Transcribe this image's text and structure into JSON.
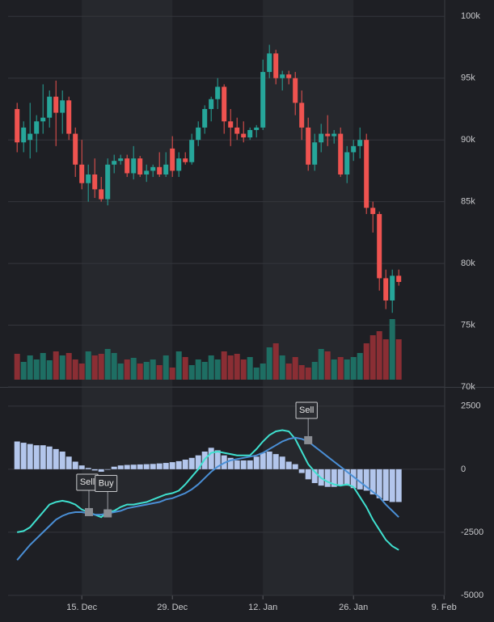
{
  "chart_data": [
    {
      "type": "candlestick",
      "x": [
        5,
        6,
        7,
        8,
        9,
        10,
        11,
        12,
        13,
        14,
        15,
        16,
        17,
        18,
        19,
        20,
        21,
        22,
        23,
        24,
        25,
        26,
        27,
        28,
        29,
        30,
        31,
        32,
        33,
        34,
        35,
        36,
        37,
        38,
        39,
        40,
        41,
        42,
        43,
        44,
        45,
        46,
        47,
        48,
        49,
        50,
        51,
        52,
        53,
        54,
        55,
        56,
        57,
        58,
        59,
        60,
        61,
        62,
        63,
        64
      ],
      "open": [
        92.5,
        89.8,
        90,
        90.5,
        91.5,
        91.8,
        93.5,
        92.2,
        93.2,
        90.5,
        88,
        86.5,
        87.2,
        86,
        85.2,
        88,
        88.3,
        88.5,
        87.3,
        88.5,
        87.2,
        87.5,
        87.8,
        87.2,
        89.3,
        87.5,
        88.5,
        88.2,
        90,
        91,
        92.5,
        93.3,
        94.3,
        91.5,
        91,
        90.5,
        90.2,
        90.8,
        91,
        95.5,
        97,
        95,
        95.3,
        95,
        93,
        91,
        88,
        89.8,
        90.5,
        90.3,
        90.5,
        87.2,
        89,
        89.5,
        90,
        84.5,
        84,
        78.8,
        77,
        79
      ],
      "high": [
        93,
        91.5,
        93,
        92,
        94.5,
        94,
        94.8,
        94,
        93.5,
        91,
        90,
        88,
        88.5,
        87,
        88.5,
        88.8,
        88.8,
        88.8,
        89.5,
        88.7,
        88,
        88,
        89,
        89,
        90.3,
        89,
        89,
        90.5,
        91.5,
        92.8,
        93.5,
        95,
        94.5,
        92.5,
        91.8,
        91.5,
        91,
        91.2,
        96.5,
        97.7,
        97.3,
        95.6,
        95.6,
        95.5,
        94,
        91.8,
        90.5,
        91.3,
        92,
        90.8,
        91,
        89.5,
        90,
        91,
        90.5,
        85,
        84.2,
        79.5,
        79.5,
        79.5
      ],
      "low": [
        89,
        89,
        88.5,
        89,
        90.5,
        91,
        89.5,
        90.5,
        90,
        87,
        86,
        85,
        85.3,
        85,
        84.7,
        87.3,
        88,
        87,
        86.8,
        87,
        86.6,
        87,
        87,
        87,
        87,
        87,
        88,
        88,
        89.5,
        90.5,
        91.5,
        92.5,
        90.5,
        89.5,
        90,
        89.8,
        90,
        90.2,
        90.8,
        95,
        94.5,
        94,
        94.5,
        92,
        90,
        87.5,
        87.5,
        89,
        89.5,
        89.7,
        87,
        86.5,
        88.3,
        88.5,
        84,
        82.5,
        77.8,
        76.3,
        76,
        78.2
      ],
      "close": [
        89.8,
        91,
        90.5,
        91.5,
        91.8,
        93.5,
        92.2,
        93.2,
        90.5,
        88,
        86.5,
        87.2,
        86,
        85.2,
        88,
        88.3,
        88.5,
        87.3,
        88.5,
        87.2,
        87.5,
        87.8,
        87.2,
        88,
        87.5,
        88.5,
        88.2,
        90,
        91,
        92.5,
        93.3,
        94.3,
        91.5,
        91,
        90.5,
        90.2,
        90.8,
        91,
        95.5,
        97,
        95,
        95.3,
        95,
        93,
        91,
        88,
        89.8,
        90.5,
        90.3,
        90.5,
        87.2,
        89,
        89.5,
        90,
        84.5,
        84,
        78.8,
        77,
        79,
        78.5
      ],
      "volume": [
        32,
        22,
        30,
        25,
        33,
        24,
        35,
        30,
        33,
        25,
        20,
        35,
        30,
        32,
        38,
        33,
        20,
        25,
        27,
        20,
        22,
        25,
        18,
        30,
        15,
        35,
        28,
        18,
        25,
        22,
        30,
        25,
        35,
        30,
        32,
        25,
        28,
        15,
        20,
        40,
        45,
        30,
        20,
        28,
        18,
        15,
        22,
        38,
        35,
        25,
        28,
        25,
        28,
        33,
        45,
        55,
        60,
        50,
        75,
        50
      ],
      "up_color": "#26a69a",
      "down_color": "#ef5350",
      "up_volume_color": "#1e6e63",
      "down_volume_color": "#8a2e34",
      "xlim": [
        3.6,
        71.1
      ],
      "ylim": [
        70,
        101
      ],
      "yticks": [
        {
          "value": 100,
          "label": "100k"
        },
        {
          "value": 95,
          "label": "95k"
        },
        {
          "value": 90,
          "label": "90k"
        },
        {
          "value": 85,
          "label": "85k"
        },
        {
          "value": 80,
          "label": "80k"
        },
        {
          "value": 75,
          "label": "75k"
        },
        {
          "value": 70,
          "label": "70k"
        }
      ],
      "grid": true
    },
    {
      "type": "macd",
      "x": [
        5,
        6,
        7,
        8,
        9,
        10,
        11,
        12,
        13,
        14,
        15,
        16,
        17,
        18,
        19,
        20,
        21,
        22,
        23,
        24,
        25,
        26,
        27,
        28,
        29,
        30,
        31,
        32,
        33,
        34,
        35,
        36,
        37,
        38,
        39,
        40,
        41,
        42,
        43,
        44,
        45,
        46,
        47,
        48,
        49,
        50,
        51,
        52,
        53,
        54,
        55,
        56,
        57,
        58,
        59,
        60,
        61,
        62,
        63,
        64
      ],
      "histogram": {
        "color": "#b3c6ec",
        "values": [
          1100,
          1050,
          1000,
          950,
          950,
          900,
          800,
          700,
          500,
          300,
          150,
          50,
          -50,
          -100,
          -20,
          100,
          150,
          170,
          180,
          190,
          200,
          210,
          230,
          250,
          280,
          320,
          380,
          450,
          550,
          700,
          850,
          750,
          550,
          450,
          350,
          350,
          350,
          500,
          650,
          700,
          600,
          500,
          300,
          200,
          -150,
          -400,
          -550,
          -650,
          -700,
          -700,
          -650,
          -650,
          -750,
          -800,
          -850,
          -1000,
          -1150,
          -1250,
          -1300,
          -1300
        ]
      },
      "series": [
        {
          "color": "#3fe0cf",
          "values": [
            -2500,
            -2450,
            -2300,
            -2000,
            -1700,
            -1400,
            -1300,
            -1250,
            -1300,
            -1400,
            -1600,
            -1700,
            -1800,
            -1900,
            -1700,
            -1650,
            -1500,
            -1400,
            -1400,
            -1350,
            -1300,
            -1200,
            -1100,
            -1000,
            -950,
            -850,
            -600,
            -300,
            0,
            400,
            650,
            700,
            650,
            600,
            550,
            550,
            550,
            800,
            1100,
            1350,
            1500,
            1550,
            1500,
            1200,
            700,
            200,
            -100,
            -350,
            -500,
            -600,
            -650,
            -600,
            -700,
            -1100,
            -1500,
            -2000,
            -2400,
            -2800,
            -3050,
            -3200
          ]
        },
        {
          "color": "#4a8fd6",
          "values": [
            -3600,
            -3300,
            -3000,
            -2750,
            -2500,
            -2250,
            -2000,
            -1850,
            -1750,
            -1700,
            -1700,
            -1750,
            -1800,
            -1800,
            -1750,
            -1700,
            -1650,
            -1550,
            -1500,
            -1450,
            -1400,
            -1350,
            -1300,
            -1200,
            -1150,
            -1050,
            -950,
            -800,
            -600,
            -350,
            -100,
            100,
            250,
            350,
            400,
            450,
            500,
            550,
            650,
            800,
            950,
            1100,
            1200,
            1250,
            1200,
            1100,
            900,
            700,
            500,
            300,
            100,
            -100,
            -300,
            -500,
            -700,
            -900,
            -1100,
            -1400,
            -1650,
            -1900
          ]
        }
      ],
      "annotations": [
        {
          "text": "Sell",
          "x": 16.1,
          "y": -1700
        },
        {
          "text": "Buy",
          "x": 19,
          "y": -1750
        },
        {
          "text": "Sell",
          "x": 50,
          "y": 1150
        }
      ],
      "xlim": [
        3.6,
        71.1
      ],
      "ylim": [
        -5000,
        3230
      ],
      "yticks": [
        2500,
        0,
        -2500,
        -5000
      ],
      "xticks": [
        {
          "value": 15,
          "label": "15. Dec"
        },
        {
          "value": 29,
          "label": "29. Dec"
        },
        {
          "value": 43,
          "label": "12. Jan"
        },
        {
          "value": 57,
          "label": "26. Jan"
        },
        {
          "value": 71,
          "label": "9. Feb"
        }
      ],
      "grid": true
    }
  ]
}
